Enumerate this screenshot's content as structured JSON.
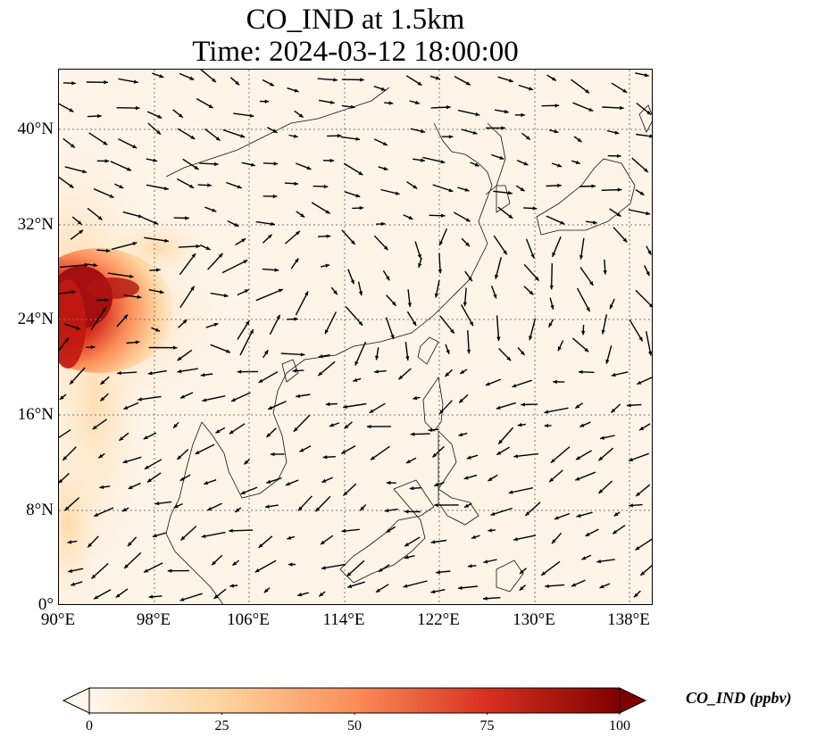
{
  "title_line1": "CO_IND at 1.5km",
  "title_line2": "Time: 2024-03-12 18:00:00",
  "colorbar": {
    "label": "CO_IND (ppbv)",
    "ticks": [
      "0",
      "25",
      "50",
      "75",
      "100"
    ],
    "min": 0,
    "max": 100,
    "colormap": "OrRd",
    "colors": [
      "#fff7ec",
      "#fdd49e",
      "#fc8d59",
      "#d7301f",
      "#7f0000"
    ]
  },
  "chart_data": {
    "type": "heatmap",
    "title": "CO_IND at 1.5km\nTime: 2024-03-12 18:00:00",
    "lon_range": [
      90,
      140
    ],
    "lat_range": [
      0,
      45
    ],
    "x_ticks": [
      "90°E",
      "98°E",
      "106°E",
      "114°E",
      "122°E",
      "130°E",
      "138°E"
    ],
    "y_ticks": [
      "0°",
      "8°N",
      "16°N",
      "24°N",
      "32°N",
      "40°N"
    ],
    "grid": true,
    "overlay": "wind vectors",
    "high_concentration_region": "Myanmar / Bangladesh / Yunnan border, approx 90–97°E, 20–30°N, values near 100 ppbv"
  }
}
